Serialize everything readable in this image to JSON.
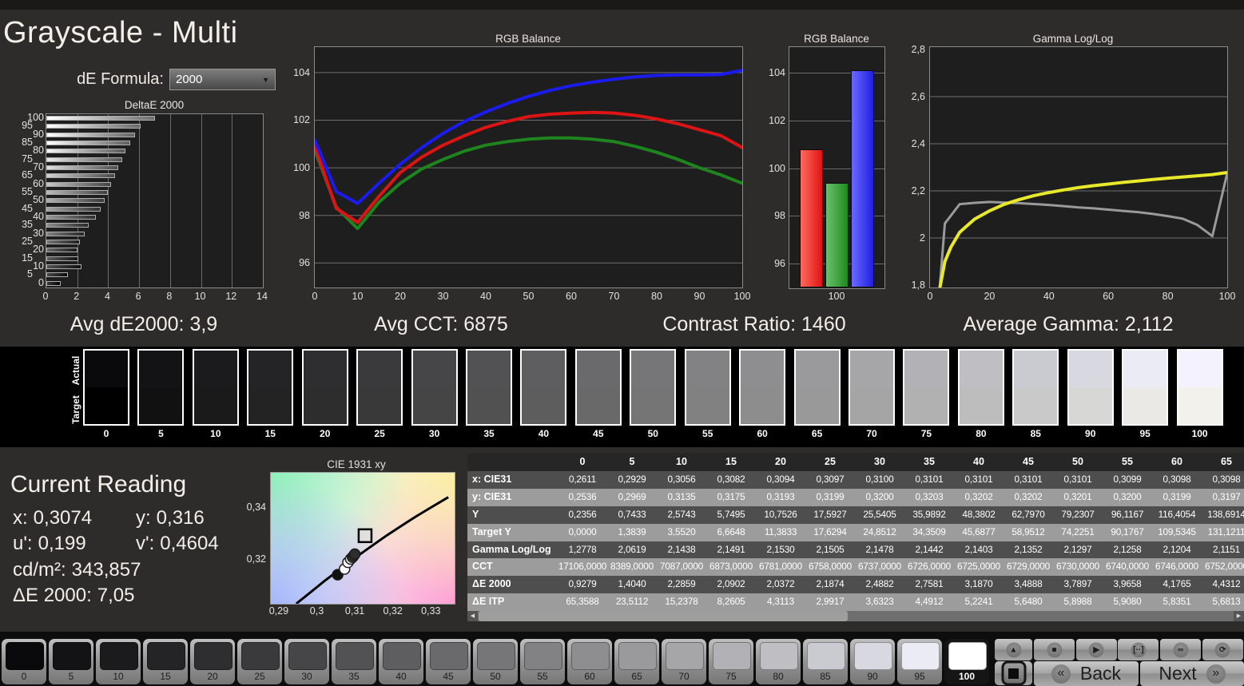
{
  "header": {
    "title": "Grayscale - Multi",
    "de_formula_label": "dE Formula:",
    "de_formula_value": "2000"
  },
  "stats": {
    "avg_de2000": "Avg dE2000: 3,9",
    "avg_cct": "Avg CCT: 6875",
    "contrast_ratio": "Contrast Ratio: 1460",
    "avg_gamma": "Average Gamma: 2,112"
  },
  "chart_data": [
    {
      "id": "deltae",
      "type": "bar",
      "orientation": "horizontal",
      "title": "DeltaE 2000",
      "categories": [
        100,
        95,
        90,
        85,
        80,
        75,
        70,
        65,
        60,
        55,
        50,
        45,
        40,
        35,
        30,
        25,
        20,
        15,
        10,
        5,
        0
      ],
      "values": [
        7.05,
        6.1,
        5.75,
        5.4,
        5.1,
        4.9,
        4.65,
        4.4312,
        4.1765,
        3.9658,
        3.7897,
        3.4888,
        3.187,
        2.7581,
        2.4882,
        2.1874,
        2.0372,
        2.0902,
        2.2859,
        1.404,
        0.9279
      ],
      "xlim": [
        0,
        14
      ],
      "xticks": [
        0,
        2,
        4,
        6,
        8,
        10,
        12,
        14
      ]
    },
    {
      "id": "rgb_line",
      "type": "line",
      "title": "RGB Balance",
      "xlim": [
        0,
        100
      ],
      "ylim": [
        94.97,
        105.07
      ],
      "xticks": [
        0,
        10,
        20,
        30,
        40,
        50,
        60,
        70,
        80,
        90,
        100
      ],
      "yticks": [
        96,
        98,
        100,
        102,
        104
      ],
      "series": [
        {
          "name": "green",
          "color": "#1e841e",
          "x": [
            0,
            5,
            10,
            15,
            20,
            25,
            30,
            35,
            40,
            45,
            50,
            55,
            60,
            65,
            70,
            75,
            80,
            85,
            90,
            95,
            100
          ],
          "y": [
            100.75,
            98.35,
            97.45,
            98.55,
            99.35,
            99.95,
            100.35,
            100.7,
            100.95,
            101.1,
            101.2,
            101.25,
            101.25,
            101.2,
            101.1,
            100.9,
            100.65,
            100.35,
            100.0,
            99.7,
            99.35
          ]
        },
        {
          "name": "red",
          "color": "#dd1414",
          "x": [
            0,
            5,
            10,
            15,
            20,
            25,
            30,
            35,
            40,
            45,
            50,
            55,
            60,
            65,
            70,
            75,
            80,
            85,
            90,
            95,
            100
          ],
          "y": [
            100.9,
            98.3,
            97.7,
            98.8,
            99.8,
            100.45,
            100.95,
            101.35,
            101.7,
            101.95,
            102.15,
            102.25,
            102.3,
            102.33,
            102.3,
            102.2,
            102.05,
            101.85,
            101.6,
            101.35,
            100.85
          ]
        },
        {
          "name": "blue",
          "color": "#1b1bee",
          "x": [
            0,
            5,
            10,
            15,
            20,
            25,
            30,
            35,
            40,
            45,
            50,
            55,
            60,
            65,
            70,
            75,
            80,
            85,
            90,
            95,
            100
          ],
          "y": [
            101.15,
            99.0,
            98.5,
            99.35,
            100.15,
            100.85,
            101.45,
            101.95,
            102.35,
            102.7,
            103.0,
            103.25,
            103.45,
            103.6,
            103.72,
            103.82,
            103.88,
            103.9,
            103.9,
            103.92,
            104.1
          ]
        }
      ]
    },
    {
      "id": "rgb_bar",
      "type": "bar",
      "title": "RGB Balance",
      "categories": [
        "red",
        "green",
        "blue"
      ],
      "values": [
        100.8,
        99.4,
        104.1
      ],
      "gradients": [
        "linear-gradient(90deg,#ff6a5e,#e01414)",
        "linear-gradient(90deg,#6cc06c,#1f8a1f)",
        "linear-gradient(90deg,#6a6aff,#2020e0)"
      ],
      "ylim": [
        94.97,
        105.07
      ],
      "yticks": [
        96,
        98,
        100,
        102,
        104
      ],
      "xlabel": "100"
    },
    {
      "id": "gamma",
      "type": "line",
      "title": "Gamma Log/Log",
      "xlim": [
        0,
        100
      ],
      "ylim": [
        1.79,
        2.81
      ],
      "xticks": [
        0,
        20,
        40,
        60,
        80,
        100
      ],
      "yticks": [
        {
          "t": "1,8",
          "v": 1.8
        },
        {
          "t": "2",
          "v": 2.0
        },
        {
          "t": "2,2",
          "v": 2.2
        },
        {
          "t": "2,4",
          "v": 2.4
        },
        {
          "t": "2,6",
          "v": 2.6
        },
        {
          "t": "2,8",
          "v": 2.8
        }
      ],
      "gridvalues": [
        2.0,
        2.2,
        2.4,
        2.6
      ],
      "series": [
        {
          "name": "measured-gamma",
          "color": "#9a9a9a",
          "width": 3,
          "x": [
            0,
            5,
            10,
            15,
            20,
            25,
            30,
            35,
            40,
            45,
            50,
            55,
            60,
            65,
            70,
            75,
            80,
            85,
            90,
            95,
            100
          ],
          "y": [
            1.2778,
            2.0619,
            2.1438,
            2.1491,
            2.153,
            2.1505,
            2.1478,
            2.1442,
            2.1403,
            2.1352,
            2.1297,
            2.1258,
            2.1204,
            2.1151,
            2.11,
            2.102,
            2.093,
            2.082,
            2.055,
            2.008,
            2.275
          ]
        },
        {
          "name": "target-gamma",
          "color": "#e9e92c",
          "width": 4,
          "x": [
            3.2,
            5,
            7,
            10,
            15,
            20,
            25,
            30,
            35,
            40,
            45,
            50,
            55,
            60,
            65,
            70,
            75,
            80,
            85,
            90,
            95,
            100
          ],
          "y": [
            1.78,
            1.9,
            1.96,
            2.025,
            2.08,
            2.115,
            2.143,
            2.163,
            2.18,
            2.193,
            2.204,
            2.214,
            2.222,
            2.229,
            2.236,
            2.242,
            2.248,
            2.254,
            2.259,
            2.264,
            2.269,
            2.278
          ]
        }
      ]
    },
    {
      "id": "cie",
      "type": "scatter",
      "title": "CIE 1931 xy",
      "xlim": [
        0.28792,
        0.33625
      ],
      "ylim": [
        0.30246,
        0.35354
      ],
      "xticks": [
        {
          "t": "0,29",
          "v": 0.29
        },
        {
          "t": "0,3",
          "v": 0.3
        },
        {
          "t": "0,31",
          "v": 0.31
        },
        {
          "t": "0,32",
          "v": 0.32
        },
        {
          "t": "0,33",
          "v": 0.33
        }
      ],
      "yticks": [
        {
          "t": "0,34",
          "v": 0.34
        },
        {
          "t": "0,32",
          "v": 0.32
        }
      ],
      "locus": [
        [
          0.2946,
          0.3025
        ],
        [
          0.298,
          0.3065
        ],
        [
          0.302,
          0.3113
        ],
        [
          0.306,
          0.3158
        ],
        [
          0.31,
          0.3203
        ],
        [
          0.314,
          0.3245
        ],
        [
          0.318,
          0.3287
        ],
        [
          0.322,
          0.3326
        ],
        [
          0.326,
          0.3364
        ],
        [
          0.33,
          0.34
        ],
        [
          0.3346,
          0.344
        ]
      ],
      "target": {
        "x": 0.3127,
        "y": 0.329
      },
      "points": [
        {
          "x": 0.3055,
          "y": 0.3138,
          "fill": "#111111"
        },
        {
          "x": 0.3073,
          "y": 0.316,
          "fill": "#ffffff"
        },
        {
          "x": 0.3082,
          "y": 0.3186,
          "fill": "#ffffff"
        },
        {
          "x": 0.3089,
          "y": 0.3199,
          "fill": "#eeeeee"
        },
        {
          "x": 0.3094,
          "y": 0.3206,
          "fill": "#555555"
        },
        {
          "x": 0.3097,
          "y": 0.3212,
          "fill": "#3d3d3d"
        },
        {
          "x": 0.31,
          "y": 0.3218,
          "fill": "#2e2e2e"
        }
      ]
    }
  ],
  "current_reading": {
    "title": "Current Reading",
    "x_label": "x:",
    "x_value": "0,3074",
    "y_label": "y:",
    "y_value": "0,316",
    "u_label": "u':",
    "u_value": "0,199",
    "v_label": "v':",
    "v_value": "0,4604",
    "lum_label": "cd/m²:",
    "lum_value": "343,857",
    "de_label": "ΔE 2000:",
    "de_value": "7,05"
  },
  "swatch_strip": {
    "row_labels": [
      "Actual",
      "Target"
    ],
    "levels": [
      "0",
      "5",
      "10",
      "15",
      "20",
      "25",
      "30",
      "35",
      "40",
      "45",
      "50",
      "55",
      "60",
      "65",
      "70",
      "75",
      "80",
      "85",
      "90",
      "95",
      "100"
    ],
    "actual_colors": [
      "#0a0a0c",
      "#131316",
      "#1b1b1e",
      "#242427",
      "#2e2e31",
      "#3a3a3d",
      "#464649",
      "#525255",
      "#5e5e61",
      "#6a6a6d",
      "#767679",
      "#828285",
      "#8e8e91",
      "#9a9a9d",
      "#a6a6a9",
      "#b2b2b6",
      "#bebec3",
      "#cacad1",
      "#d8d8e0",
      "#ebebf5",
      "#f4f2fc"
    ],
    "target_colors": [
      "#000000",
      "#111112",
      "#1a1a1b",
      "#232323",
      "#2d2d2d",
      "#393939",
      "#454545",
      "#515151",
      "#5d5d5d",
      "#696969",
      "#757575",
      "#818181",
      "#8d8d8d",
      "#999999",
      "#a5a5a5",
      "#b1b1b1",
      "#bdbdbd",
      "#c9c9c9",
      "#d7d7d5",
      "#eae9e5",
      "#f3f1ec"
    ]
  },
  "table": {
    "columns": [
      "0",
      "5",
      "10",
      "15",
      "20",
      "25",
      "30",
      "35",
      "40",
      "45",
      "50",
      "55",
      "60",
      "65"
    ],
    "rows": [
      {
        "label": "x: CIE31",
        "values": [
          "0,2611",
          "0,2929",
          "0,3056",
          "0,3082",
          "0,3094",
          "0,3097",
          "0,3100",
          "0,3101",
          "0,3101",
          "0,3101",
          "0,3101",
          "0,3099",
          "0,3098",
          "0,3098"
        ]
      },
      {
        "label": "y: CIE31",
        "values": [
          "0,2536",
          "0,2969",
          "0,3135",
          "0,3175",
          "0,3193",
          "0,3199",
          "0,3200",
          "0,3203",
          "0,3202",
          "0,3202",
          "0,3201",
          "0,3200",
          "0,3199",
          "0,3197"
        ]
      },
      {
        "label": "Y",
        "values": [
          "0,2356",
          "0,7433",
          "2,5743",
          "5,7495",
          "10,7526",
          "17,5927",
          "25,5405",
          "35,9892",
          "48,3802",
          "62,7970",
          "79,2307",
          "96,1167",
          "116,4054",
          "138,6914"
        ]
      },
      {
        "label": "Target Y",
        "values": [
          "0,0000",
          "1,3839",
          "3,5520",
          "6,6648",
          "11,3833",
          "17,6294",
          "24,8512",
          "34,3509",
          "45,6877",
          "58,9512",
          "74,2251",
          "90,1767",
          "109,5345",
          "131,1211"
        ]
      },
      {
        "label": "Gamma Log/Log",
        "values": [
          "1,2778",
          "2,0619",
          "2,1438",
          "2,1491",
          "2,1530",
          "2,1505",
          "2,1478",
          "2,1442",
          "2,1403",
          "2,1352",
          "2,1297",
          "2,1258",
          "2,1204",
          "2,1151"
        ]
      },
      {
        "label": "CCT",
        "values": [
          "17106,0000",
          "8389,0000",
          "7087,0000",
          "6873,0000",
          "6781,0000",
          "6758,0000",
          "6737,0000",
          "6726,0000",
          "6725,0000",
          "6729,0000",
          "6730,0000",
          "6740,0000",
          "6746,0000",
          "6752,0000"
        ]
      },
      {
        "label": "ΔE 2000",
        "values": [
          "0,9279",
          "1,4040",
          "2,2859",
          "2,0902",
          "2,0372",
          "2,1874",
          "2,4882",
          "2,7581",
          "3,1870",
          "3,4888",
          "3,7897",
          "3,9658",
          "4,1765",
          "4,4312"
        ]
      },
      {
        "label": "ΔE ITP",
        "values": [
          "65,3588",
          "23,5112",
          "15,2378",
          "8,2605",
          "4,3113",
          "2,9917",
          "3,6323",
          "4,4912",
          "5,2241",
          "5,6480",
          "5,8988",
          "5,9080",
          "5,8351",
          "5,6813"
        ]
      }
    ]
  },
  "bottom": {
    "selected_level": "100",
    "up_glyph": "▲",
    "transport": [
      {
        "name": "stop",
        "glyph": "■"
      },
      {
        "name": "play",
        "glyph": "▶"
      },
      {
        "name": "interval",
        "glyph": "[··]"
      },
      {
        "name": "continuous",
        "glyph": "∞"
      },
      {
        "name": "loop",
        "glyph": "⟳"
      },
      {
        "name": "record",
        "glyph": ""
      }
    ],
    "back_chev": "«",
    "back": "Back",
    "next": "Next",
    "next_chev": "»"
  }
}
